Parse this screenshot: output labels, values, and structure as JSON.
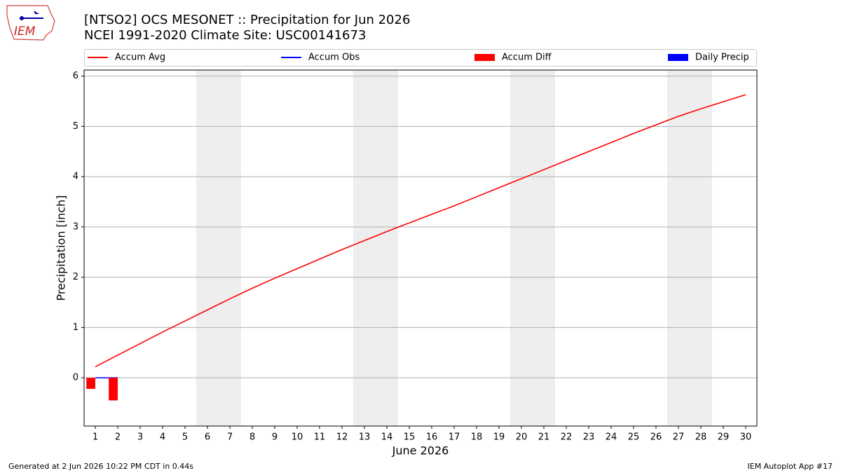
{
  "logo_text": "IEM",
  "footer": {
    "left": "Generated at 2 Jun 2026 10:22 PM CDT in 0.44s",
    "right": "IEM Autoplot App #17"
  },
  "chart_data": {
    "type": "combo",
    "title": "[NTSO2] OCS MESONET :: Precipitation for Jun 2026",
    "subtitle": "NCEI 1991-2020 Climate Site: USC00141673",
    "x_label": "June 2026",
    "y_label": "Precipitation [inch]",
    "x": [
      1,
      2,
      3,
      4,
      5,
      6,
      7,
      8,
      9,
      10,
      11,
      12,
      13,
      14,
      15,
      16,
      17,
      18,
      19,
      20,
      21,
      22,
      23,
      24,
      25,
      26,
      27,
      28,
      29,
      30
    ],
    "series": [
      {
        "name": "Accum Avg",
        "type": "line",
        "color": "#ff0000",
        "values": [
          0.22,
          0.45,
          0.68,
          0.91,
          1.13,
          1.35,
          1.57,
          1.78,
          1.98,
          2.17,
          2.36,
          2.55,
          2.73,
          2.91,
          3.08,
          3.25,
          3.42,
          3.6,
          3.78,
          3.96,
          4.14,
          4.32,
          4.5,
          4.68,
          4.86,
          5.03,
          5.2,
          5.35,
          5.49,
          5.63
        ]
      },
      {
        "name": "Accum Obs",
        "type": "line",
        "color": "#0000ff",
        "values": [
          0,
          0,
          null,
          null,
          null,
          null,
          null,
          null,
          null,
          null,
          null,
          null,
          null,
          null,
          null,
          null,
          null,
          null,
          null,
          null,
          null,
          null,
          null,
          null,
          null,
          null,
          null,
          null,
          null,
          null
        ]
      },
      {
        "name": "Accum Diff",
        "type": "bar",
        "color": "#ff0000",
        "values": [
          -0.22,
          -0.45,
          null,
          null,
          null,
          null,
          null,
          null,
          null,
          null,
          null,
          null,
          null,
          null,
          null,
          null,
          null,
          null,
          null,
          null,
          null,
          null,
          null,
          null,
          null,
          null,
          null,
          null,
          null,
          null
        ]
      },
      {
        "name": "Daily Precip",
        "type": "bar",
        "color": "#0000ff",
        "values": [
          0,
          0,
          null,
          null,
          null,
          null,
          null,
          null,
          null,
          null,
          null,
          null,
          null,
          null,
          null,
          null,
          null,
          null,
          null,
          null,
          null,
          null,
          null,
          null,
          null,
          null,
          null,
          null,
          null,
          null
        ]
      }
    ],
    "shaded_spans": [
      [
        5.5,
        7.5
      ],
      [
        12.5,
        14.5
      ],
      [
        19.5,
        21.5
      ],
      [
        26.5,
        28.5
      ]
    ],
    "xlim": [
      0.5,
      30.5
    ],
    "xticks": [
      1,
      2,
      3,
      4,
      5,
      6,
      7,
      8,
      9,
      10,
      11,
      12,
      13,
      14,
      15,
      16,
      17,
      18,
      19,
      20,
      21,
      22,
      23,
      24,
      25,
      26,
      27,
      28,
      29,
      30
    ],
    "ylim": [
      -0.96,
      6.12
    ],
    "yticks": [
      0,
      1,
      2,
      3,
      4,
      5,
      6
    ],
    "grid": true,
    "legend": "top"
  }
}
